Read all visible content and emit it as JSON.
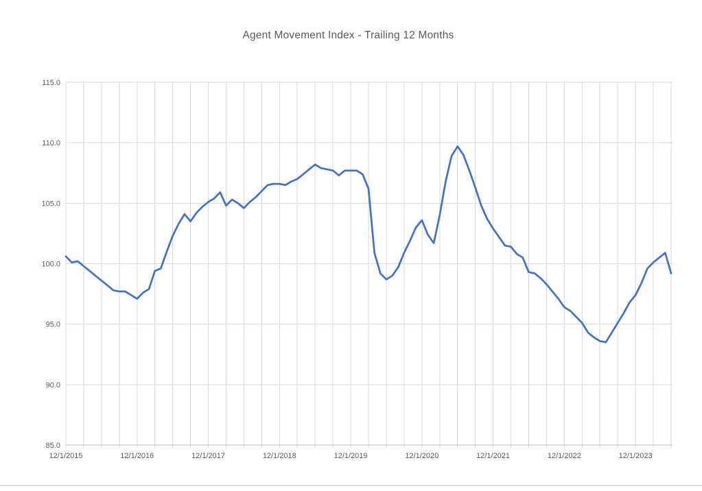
{
  "chart_data": {
    "type": "line",
    "title": "Agent Movement Index - Trailing 12 Months",
    "xlabel": "",
    "ylabel": "",
    "ylim": [
      85.0,
      115.0
    ],
    "y_ticks": [
      85.0,
      90.0,
      95.0,
      100.0,
      105.0,
      110.0,
      115.0
    ],
    "y_tick_format": "one-decimal",
    "x_tick_labels": [
      "12/1/2015",
      "12/1/2016",
      "12/1/2017",
      "12/1/2018",
      "12/1/2019",
      "12/1/2020",
      "12/1/2021",
      "12/1/2022",
      "12/1/2023"
    ],
    "x_tick_every_n_points": 12,
    "vertical_gridline_every_n_points": 3,
    "grid": "on",
    "legend": "none",
    "markers": "none",
    "series": [
      {
        "name": "Agent Movement Index",
        "frequency": "monthly",
        "start": "12/1/2015",
        "values": [
          100.6,
          100.1,
          100.2,
          99.8,
          99.4,
          99.0,
          98.6,
          98.2,
          97.8,
          97.7,
          97.7,
          97.4,
          97.1,
          97.6,
          97.9,
          99.4,
          99.6,
          101.0,
          102.3,
          103.3,
          104.1,
          103.5,
          104.2,
          104.7,
          105.1,
          105.4,
          105.9,
          104.8,
          105.3,
          105.0,
          104.6,
          105.1,
          105.5,
          106.0,
          106.5,
          106.6,
          106.6,
          106.5,
          106.8,
          107.0,
          107.4,
          107.8,
          108.2,
          107.9,
          107.8,
          107.7,
          107.3,
          107.7,
          107.7,
          107.7,
          107.4,
          106.2,
          100.9,
          99.2,
          98.7,
          99.0,
          99.7,
          100.9,
          101.9,
          103.0,
          103.6,
          102.4,
          101.7,
          104.0,
          106.8,
          108.9,
          109.7,
          109.0,
          107.7,
          106.3,
          104.8,
          103.7,
          102.9,
          102.2,
          101.5,
          101.4,
          100.8,
          100.5,
          99.3,
          99.2,
          98.8,
          98.3,
          97.7,
          97.1,
          96.4,
          96.1,
          95.6,
          95.1,
          94.3,
          93.9,
          93.6,
          93.5,
          94.3,
          95.1,
          95.9,
          96.8,
          97.4,
          98.4,
          99.6,
          100.1,
          100.5,
          100.9,
          99.2
        ]
      }
    ],
    "colors": {
      "line": "#4472C4",
      "gridline": "#d9d9d9",
      "axis_line": "#bfbfbf",
      "tick_text": "#595959",
      "title_text": "#595959",
      "background": "#ffffff"
    }
  }
}
